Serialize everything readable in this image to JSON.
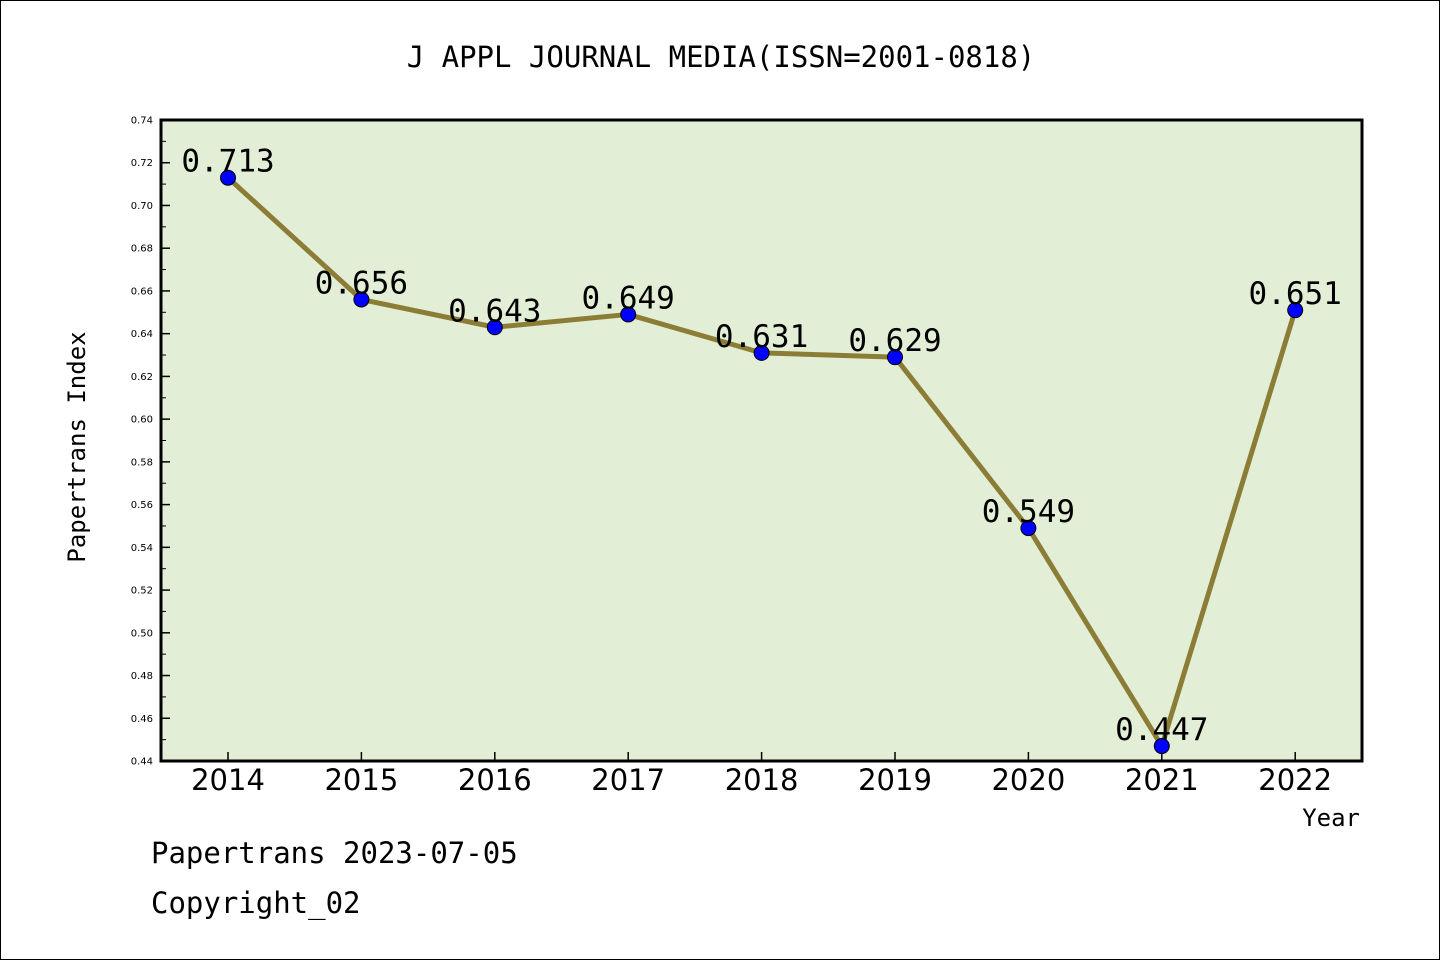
{
  "chart_data": {
    "type": "line",
    "title": "J APPL JOURNAL MEDIA(ISSN=2001-0818)",
    "xlabel": "Year",
    "ylabel": "Papertrans Index",
    "categories": [
      "2014",
      "2015",
      "2016",
      "2017",
      "2018",
      "2019",
      "2020",
      "2021",
      "2022"
    ],
    "values": [
      0.713,
      0.656,
      0.643,
      0.649,
      0.631,
      0.629,
      0.549,
      0.447,
      0.651
    ],
    "data_labels": [
      "0.713",
      "0.656",
      "0.643",
      "0.649",
      "0.631",
      "0.629",
      "0.549",
      "0.447",
      "0.651"
    ],
    "ylim": [
      0.44,
      0.74
    ],
    "y_ticks": [
      "0.44",
      "0.46",
      "0.48",
      "0.50",
      "0.52",
      "0.54",
      "0.56",
      "0.58",
      "0.60",
      "0.62",
      "0.64",
      "0.66",
      "0.68",
      "0.70",
      "0.72",
      "0.74"
    ],
    "grid": false,
    "legend": "none",
    "colors": {
      "plot_background": "#e2efd6",
      "line": "#8c7d36",
      "marker": "#0000ff",
      "axis": "#000000"
    }
  },
  "footer": {
    "date_line": "Papertrans 2023-07-05",
    "copyright": "Copyright_02"
  }
}
